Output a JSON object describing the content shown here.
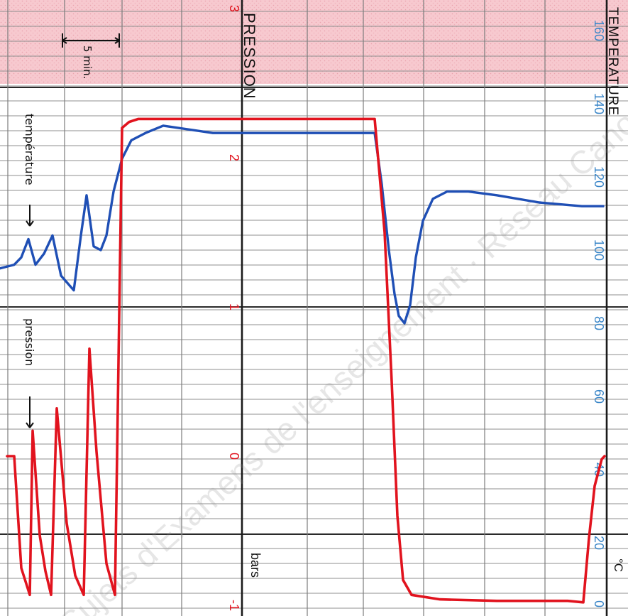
{
  "chart_data": {
    "type": "line",
    "title": "",
    "axes": {
      "pressure": {
        "label": "PRESSION",
        "unit": "bars",
        "ticks": [
          3,
          2,
          1,
          0,
          -1
        ],
        "tick_labels": [
          "3",
          "2",
          "1",
          "0",
          "-1"
        ],
        "range": [
          -1,
          3
        ]
      },
      "temperature": {
        "label": "TEMPERATURE",
        "unit": "°C",
        "ticks": [
          160,
          140,
          120,
          100,
          80,
          60,
          40,
          20,
          0
        ],
        "tick_labels": [
          "160",
          "140",
          "120",
          "100",
          "80",
          "60",
          "40",
          "20",
          "0"
        ],
        "range": [
          0,
          160
        ]
      }
    },
    "annotations": {
      "scale": "5 min.",
      "temperature_label": "température",
      "pressure_label": "pression"
    },
    "watermark": "Sujets d'Examens de l'enseignement · Réseau Canopé",
    "series": [
      {
        "name": "température",
        "axis": "temperature",
        "color": "#1f4fb5",
        "values": [
          [
            0,
            95
          ],
          [
            20,
            96
          ],
          [
            30,
            98
          ],
          [
            40,
            103
          ],
          [
            50,
            96
          ],
          [
            62,
            99
          ],
          [
            74,
            104
          ],
          [
            86,
            93
          ],
          [
            104,
            89
          ],
          [
            114,
            104
          ],
          [
            122,
            115
          ],
          [
            132,
            101
          ],
          [
            142,
            100
          ],
          [
            150,
            104
          ],
          [
            160,
            116
          ],
          [
            172,
            125
          ],
          [
            185,
            130
          ],
          [
            205,
            132
          ],
          [
            230,
            134
          ],
          [
            300,
            132
          ],
          [
            400,
            132
          ],
          [
            528,
            132
          ],
          [
            538,
            118
          ],
          [
            548,
            100
          ],
          [
            556,
            88
          ],
          [
            562,
            82
          ],
          [
            570,
            80
          ],
          [
            578,
            85
          ],
          [
            586,
            98
          ],
          [
            596,
            108
          ],
          [
            610,
            114
          ],
          [
            630,
            116
          ],
          [
            660,
            116
          ],
          [
            700,
            115
          ],
          [
            760,
            113
          ],
          [
            820,
            112
          ],
          [
            850,
            112
          ]
        ]
      },
      {
        "name": "pression",
        "axis": "pressure",
        "color": "#e1131e",
        "values": [
          [
            10,
            0.0
          ],
          [
            20,
            0.0
          ],
          [
            30,
            -0.75
          ],
          [
            42,
            -0.93
          ],
          [
            46,
            0.17
          ],
          [
            56,
            -0.53
          ],
          [
            64,
            -0.77
          ],
          [
            72,
            -0.93
          ],
          [
            80,
            0.32
          ],
          [
            94,
            -0.45
          ],
          [
            106,
            -0.8
          ],
          [
            118,
            -0.93
          ],
          [
            126,
            0.72
          ],
          [
            136,
            0.03
          ],
          [
            150,
            -0.72
          ],
          [
            162,
            -0.93
          ],
          [
            172,
            2.2
          ],
          [
            182,
            2.24
          ],
          [
            195,
            2.26
          ],
          [
            250,
            2.26
          ],
          [
            400,
            2.26
          ],
          [
            528,
            2.26
          ],
          [
            542,
            1.5
          ],
          [
            552,
            0.5
          ],
          [
            560,
            -0.4
          ],
          [
            568,
            -0.83
          ],
          [
            580,
            -0.93
          ],
          [
            620,
            -0.96
          ],
          [
            700,
            -0.97
          ],
          [
            800,
            -0.97
          ],
          [
            822,
            -0.98
          ],
          [
            830,
            -0.55
          ],
          [
            838,
            -0.2
          ],
          [
            848,
            -0.02
          ],
          [
            852,
            0.0
          ]
        ]
      }
    ]
  }
}
